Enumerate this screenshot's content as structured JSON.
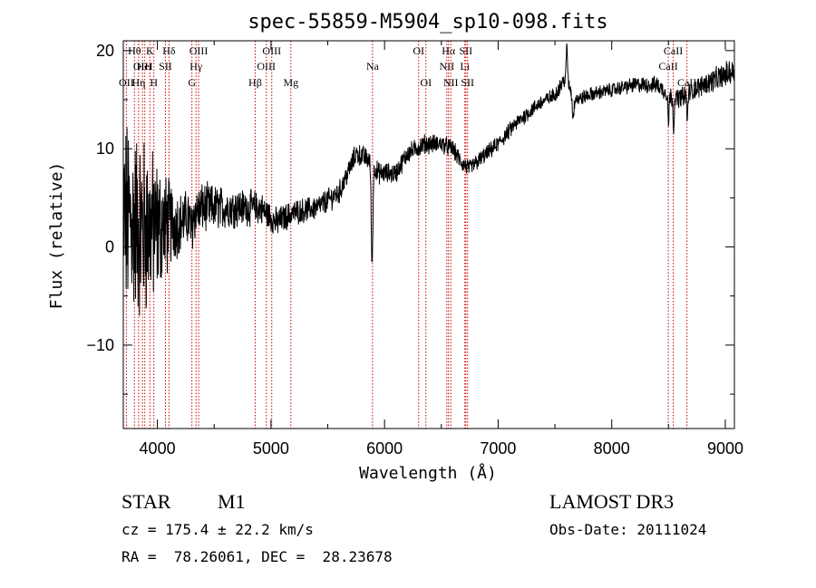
{
  "chart_data": {
    "type": "line",
    "title": "spec-55859-M5904_sp10-098.fits",
    "xlabel": "Wavelength (Å)",
    "ylabel": "Flux (relative)",
    "xlim": [
      3700,
      9080
    ],
    "ylim": [
      -18.5,
      21
    ],
    "xticks": [
      4000,
      5000,
      6000,
      7000,
      8000,
      9000
    ],
    "yticks": [
      -10,
      0,
      10,
      20
    ],
    "ytick_labels": [
      "−10",
      "0",
      "10",
      "20"
    ],
    "series": [
      {
        "name": "spectrum",
        "continuum_knots": [
          [
            3700,
            3
          ],
          [
            3850,
            2
          ],
          [
            4000,
            2
          ],
          [
            4200,
            2.5
          ],
          [
            4400,
            4
          ],
          [
            4700,
            4
          ],
          [
            4900,
            4
          ],
          [
            5050,
            2.5
          ],
          [
            5200,
            3.5
          ],
          [
            5400,
            4
          ],
          [
            5600,
            5.5
          ],
          [
            5750,
            9.5
          ],
          [
            5850,
            9
          ],
          [
            5950,
            7.5
          ],
          [
            6100,
            7.5
          ],
          [
            6200,
            9.5
          ],
          [
            6350,
            10.5
          ],
          [
            6500,
            10.5
          ],
          [
            6600,
            10
          ],
          [
            6680,
            8.5
          ],
          [
            6750,
            8
          ],
          [
            6900,
            9.5
          ],
          [
            7000,
            10.5
          ],
          [
            7150,
            12.5
          ],
          [
            7350,
            14.5
          ],
          [
            7500,
            15.5
          ],
          [
            7580,
            17
          ],
          [
            7620,
            16.5
          ],
          [
            7700,
            15
          ],
          [
            7800,
            15.5
          ],
          [
            8000,
            16
          ],
          [
            8200,
            16.5
          ],
          [
            8400,
            16.5
          ],
          [
            8550,
            15
          ],
          [
            8650,
            15.5
          ],
          [
            8800,
            16.5
          ],
          [
            9000,
            17.5
          ],
          [
            9080,
            18
          ]
        ],
        "features": [
          {
            "lambda": 5890,
            "depth": 10,
            "width": 10
          },
          {
            "lambda": 4300,
            "depth": 1.5,
            "width": 15
          },
          {
            "lambda": 7605,
            "depth": -4,
            "width": 8
          },
          {
            "lambda": 7660,
            "depth": 2.5,
            "width": 12
          },
          {
            "lambda": 8500,
            "depth": 3,
            "width": 6
          },
          {
            "lambda": 8545,
            "depth": 3,
            "width": 6
          },
          {
            "lambda": 8665,
            "depth": 3,
            "width": 6
          }
        ],
        "noise_profile": [
          [
            3700,
            9
          ],
          [
            3900,
            8
          ],
          [
            4050,
            5
          ],
          [
            4200,
            2.6
          ],
          [
            4600,
            1.8
          ],
          [
            5200,
            1.1
          ],
          [
            6000,
            0.9
          ],
          [
            7000,
            0.7
          ],
          [
            8000,
            0.6
          ],
          [
            8800,
            0.9
          ],
          [
            9080,
            1.2
          ]
        ]
      }
    ],
    "lines": [
      {
        "label": "OII",
        "lambda": 3727,
        "row": 2
      },
      {
        "label": "Hθ",
        "lambda": 3798,
        "row": 0
      },
      {
        "label": "Hη",
        "lambda": 3835,
        "row": 2
      },
      {
        "label": "OIII",
        "lambda": 3869,
        "row": 1
      },
      {
        "label": "HeI",
        "lambda": 3889,
        "row": 1
      },
      {
        "label": "K",
        "lambda": 3934,
        "row": 0
      },
      {
        "label": "H",
        "lambda": 3969,
        "row": 2
      },
      {
        "label": "SII",
        "lambda": 4071,
        "row": 1
      },
      {
        "label": "Hδ",
        "lambda": 4102,
        "row": 0
      },
      {
        "label": "G",
        "lambda": 4304,
        "row": 2
      },
      {
        "label": "Hγ",
        "lambda": 4340,
        "row": 1
      },
      {
        "label": "OIII",
        "lambda": 4363,
        "row": 0
      },
      {
        "label": "Hβ",
        "lambda": 4861,
        "row": 2
      },
      {
        "label": "OIII",
        "lambda": 4959,
        "row": 1
      },
      {
        "label": "OIII",
        "lambda": 5007,
        "row": 0
      },
      {
        "label": "Mg",
        "lambda": 5175,
        "row": 2
      },
      {
        "label": "Na",
        "lambda": 5894,
        "row": 1
      },
      {
        "label": "OI",
        "lambda": 6300,
        "row": 0
      },
      {
        "label": "OI",
        "lambda": 6364,
        "row": 2
      },
      {
        "label": "NII",
        "lambda": 6548,
        "row": 1
      },
      {
        "label": "Hα",
        "lambda": 6563,
        "row": 0
      },
      {
        "label": "NII",
        "lambda": 6583,
        "row": 2
      },
      {
        "label": "Li",
        "lambda": 6707,
        "row": 1
      },
      {
        "label": "SII",
        "lambda": 6716,
        "row": 0
      },
      {
        "label": "SII",
        "lambda": 6731,
        "row": 2
      },
      {
        "label": "CaII",
        "lambda": 8498,
        "row": 1
      },
      {
        "label": "CaII",
        "lambda": 8542,
        "row": 0
      },
      {
        "label": "CaII",
        "lambda": 8662,
        "row": 2
      }
    ],
    "line_color": "#cc0000",
    "spectrum_color": "#000000"
  },
  "info": {
    "object_class": "STAR",
    "subclass": "M1",
    "survey": "LAMOST DR3",
    "redshift": "cz = 175.4 ± 22.2 km/s",
    "obs_date": "Obs-Date: 20111024",
    "coords": "RA =  78.26061, DEC =  28.23678"
  }
}
